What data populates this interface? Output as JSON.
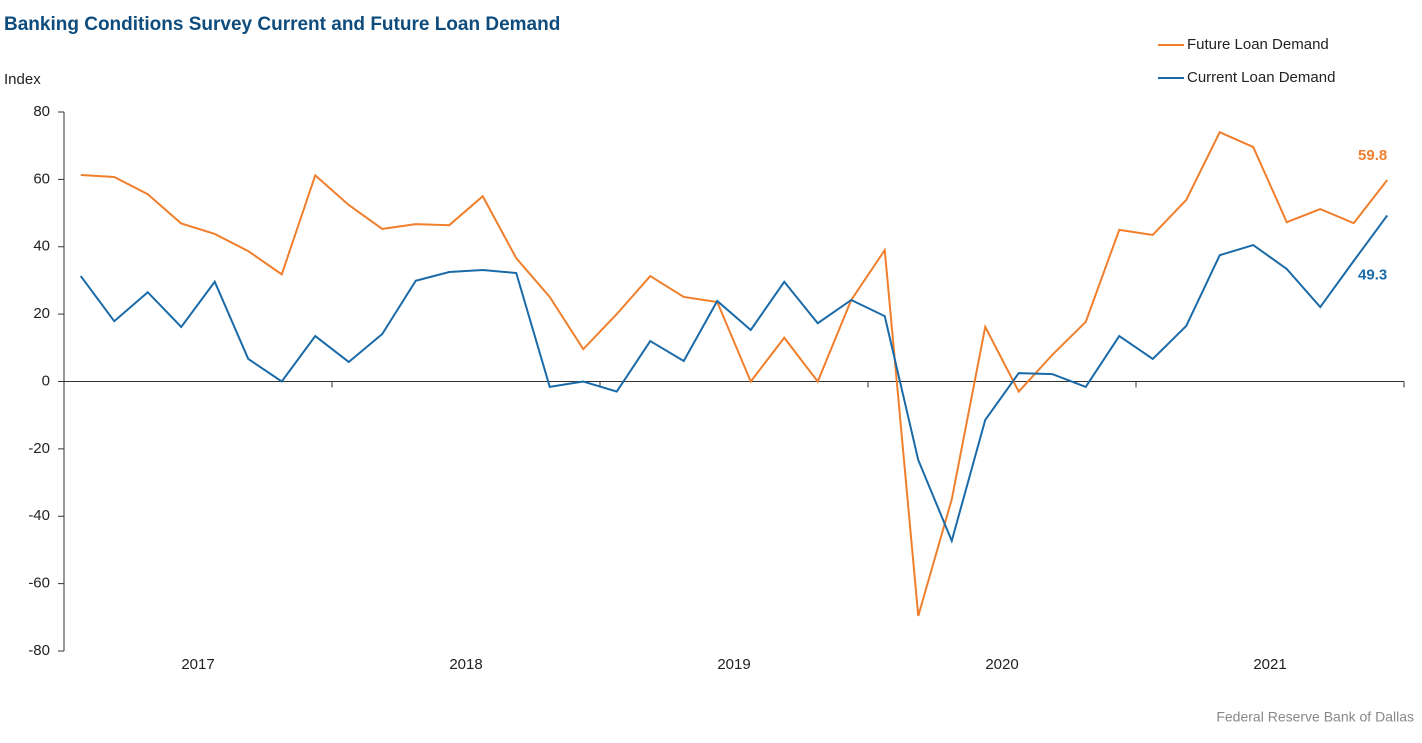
{
  "chart_data": {
    "type": "line",
    "title": "Banking Conditions Survey Current and Future Loan Demand",
    "y_label": "Index",
    "source": "Federal Reserve Bank of Dallas",
    "categories": [
      null,
      null,
      null,
      null,
      null,
      null,
      null,
      null,
      null,
      null,
      null,
      null,
      null,
      null,
      null,
      null,
      null,
      null,
      null,
      null,
      null,
      null,
      null,
      null,
      null,
      null,
      null,
      null,
      null,
      null,
      null,
      null,
      null,
      null,
      null,
      null,
      null,
      null,
      null,
      null
    ],
    "xticks": [
      {
        "value": 3.5,
        "label": "2017"
      },
      {
        "value": 11.5,
        "label": "2018"
      },
      {
        "value": 19.5,
        "label": "2019"
      },
      {
        "value": 27.5,
        "label": "2020"
      },
      {
        "value": 35.5,
        "label": "2021"
      }
    ],
    "series": [
      {
        "name": "Future Loan Demand",
        "color": "#f07f2d",
        "values": [
          61.3,
          60.7,
          55.6,
          46.9,
          43.8,
          38.7,
          31.8,
          61.2,
          52.4,
          45.3,
          46.7,
          46.4,
          55.0,
          36.6,
          25.1,
          9.6,
          20.0,
          31.3,
          25.1,
          23.6,
          0,
          13.0,
          0,
          24.2,
          39.0,
          -69.6,
          -35.0,
          16.2,
          -3.0,
          7.9,
          17.7,
          45.0,
          43.5,
          53.9,
          74.0,
          69.6,
          47.3,
          51.2,
          47.0,
          59.8
        ],
        "value_labels": [
          null,
          null,
          null,
          null,
          null,
          null,
          null,
          null,
          null,
          null,
          null,
          null,
          null,
          null,
          null,
          null,
          null,
          null,
          null,
          null,
          null,
          null,
          null,
          null,
          null,
          null,
          null,
          null,
          null,
          null,
          null,
          null,
          null,
          null,
          null,
          null,
          null,
          null,
          null,
          "59.8"
        ]
      },
      {
        "name": "Current Loan Demand",
        "color": "#1a6aa8",
        "values": [
          31.3,
          17.9,
          26.5,
          16.2,
          29.6,
          6.7,
          0,
          13.5,
          5.8,
          14.1,
          29.9,
          32.5,
          33.1,
          32.2,
          -1.6,
          0,
          -3.0,
          12.0,
          6.1,
          23.9,
          15.3,
          29.6,
          17.3,
          24.2,
          19.4,
          -23.3,
          -47.3,
          -11.4,
          2.5,
          2.2,
          -1.6,
          13.5,
          6.7,
          16.5,
          37.5,
          40.5,
          33.4,
          22.1,
          35.8,
          49.3
        ],
        "value_labels": [
          null,
          null,
          null,
          null,
          null,
          null,
          null,
          null,
          null,
          null,
          null,
          null,
          null,
          null,
          null,
          null,
          null,
          null,
          null,
          null,
          null,
          null,
          null,
          null,
          null,
          null,
          null,
          null,
          null,
          null,
          null,
          null,
          null,
          null,
          null,
          null,
          null,
          null,
          null,
          "49.3"
        ]
      }
    ],
    "ylim": [
      -80,
      80
    ],
    "yticks": [
      -80,
      -60,
      -40,
      -20,
      0,
      20,
      40,
      60,
      80
    ],
    "grid": false,
    "legend": "top-right"
  }
}
